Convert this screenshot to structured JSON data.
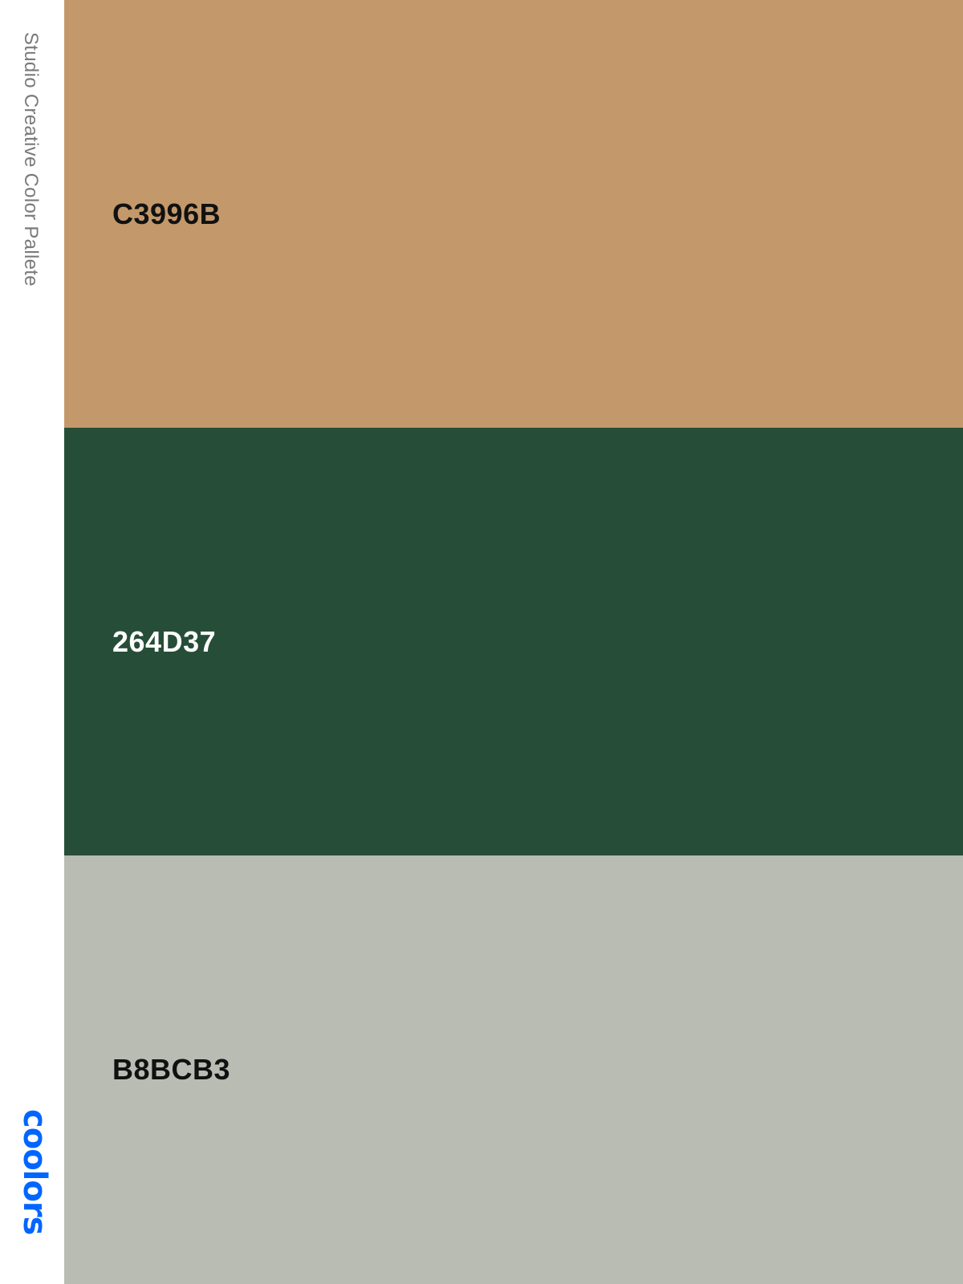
{
  "sidebar": {
    "title": "Studio Creative Color Pallete",
    "logo_text": "coolors",
    "logo_color": "#0066ff"
  },
  "palette": [
    {
      "hex_label": "C3996B",
      "color": "#C3996B",
      "text_color": "#111111"
    },
    {
      "hex_label": "264D37",
      "color": "#264D37",
      "text_color": "#ffffff"
    },
    {
      "hex_label": "B8BCB3",
      "color": "#B8BCB3",
      "text_color": "#111111"
    }
  ]
}
